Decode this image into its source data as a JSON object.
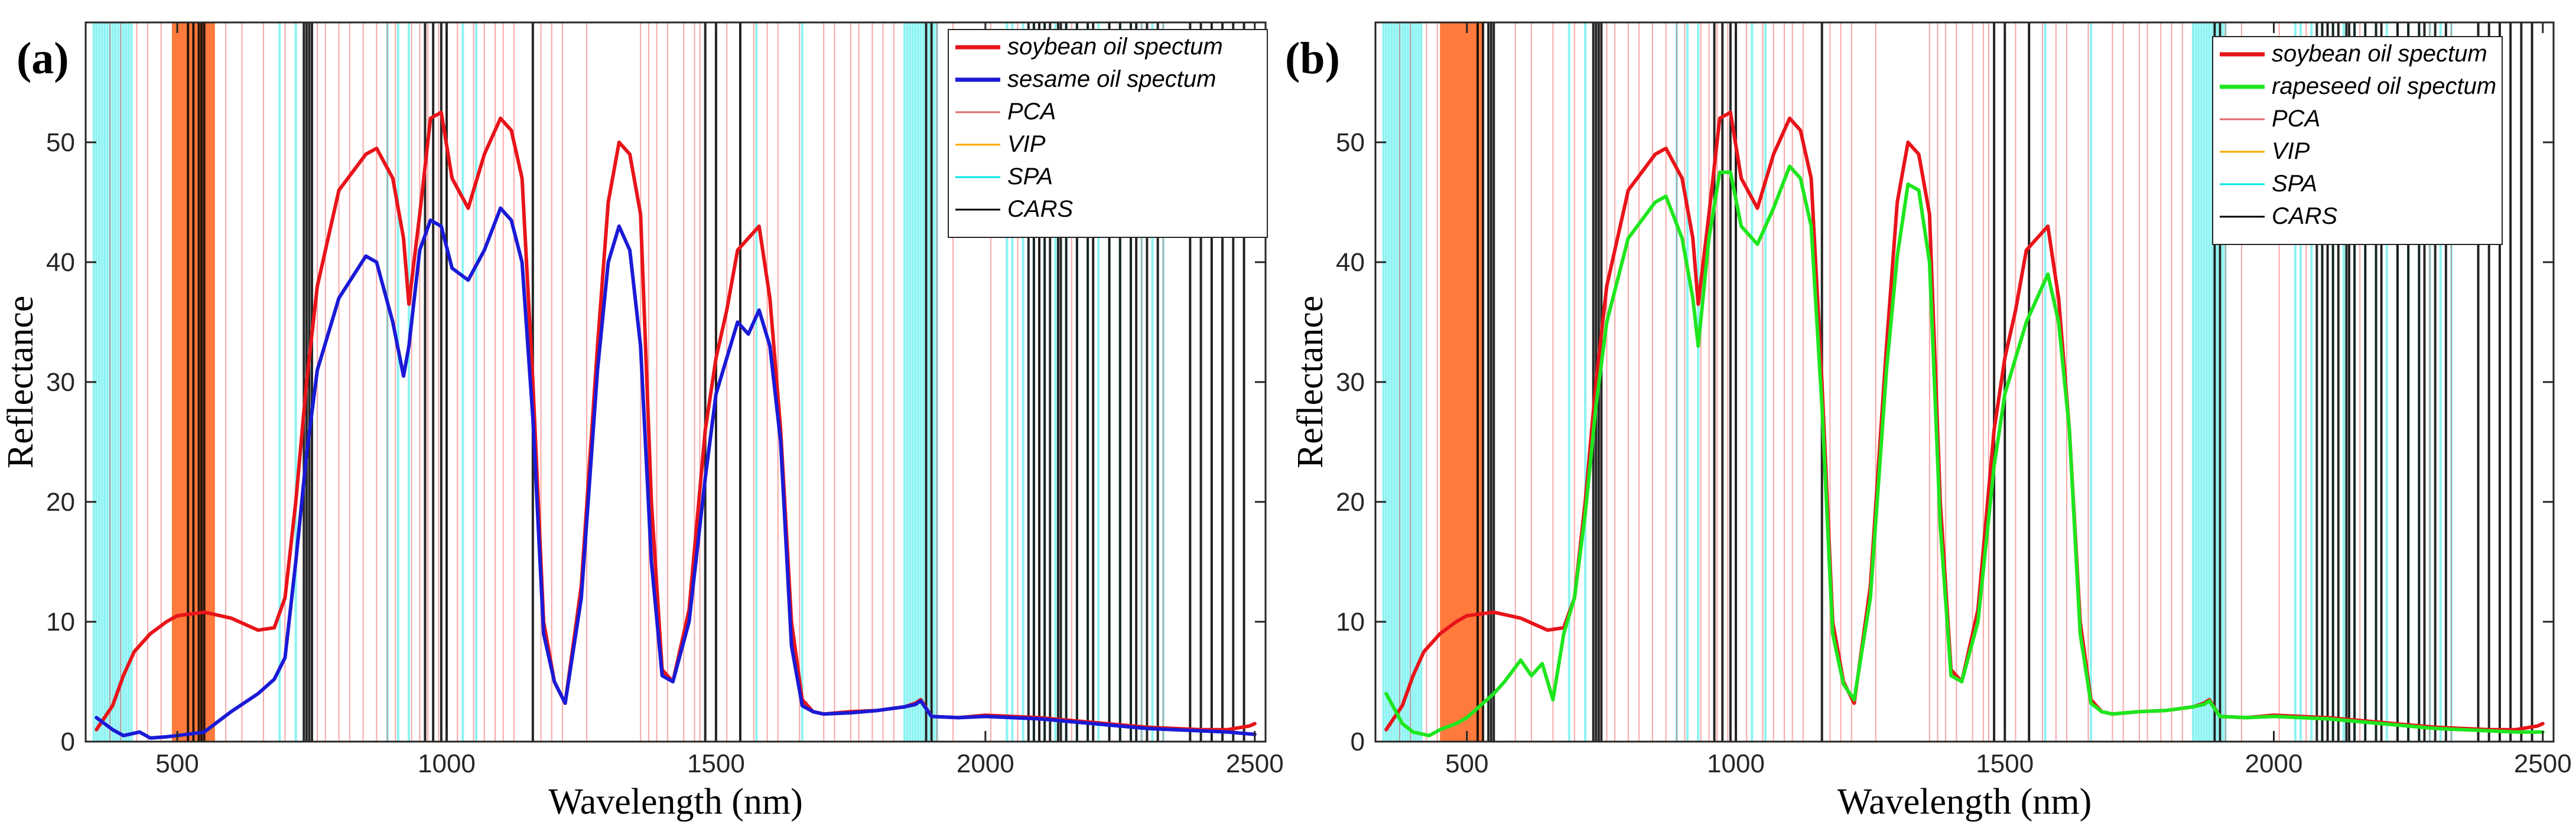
{
  "chart_data": [
    {
      "type": "line",
      "panel_label": "(a)",
      "xlabel": "Wavelength (nm)",
      "ylabel": "Reflectance",
      "xlim": [
        330,
        2520
      ],
      "ylim": [
        0,
        60
      ],
      "xticks": [
        500,
        1000,
        1500,
        2000,
        2500
      ],
      "yticks": [
        0,
        10,
        20,
        30,
        40,
        50
      ],
      "legend_position": "top-right",
      "legend": [
        "soybean oil spectum",
        "sesame oil spectum",
        "PCA",
        "VIP",
        "SPA",
        "CARS"
      ],
      "series": [
        {
          "name": "soybean oil spectum",
          "color": "#e8141a",
          "x": [
            350,
            380,
            400,
            420,
            450,
            480,
            500,
            550,
            600,
            650,
            680,
            700,
            720,
            740,
            760,
            800,
            850,
            870,
            900,
            920,
            930,
            950,
            970,
            990,
            1010,
            1040,
            1070,
            1100,
            1120,
            1140,
            1160,
            1180,
            1200,
            1220,
            1250,
            1280,
            1300,
            1320,
            1340,
            1360,
            1380,
            1400,
            1420,
            1450,
            1480,
            1500,
            1520,
            1540,
            1560,
            1580,
            1600,
            1620,
            1640,
            1660,
            1680,
            1700,
            1750,
            1800,
            1850,
            1870,
            1880,
            1900,
            1950,
            2000,
            2050,
            2100,
            2150,
            2200,
            2250,
            2300,
            2350,
            2400,
            2450,
            2490,
            2500
          ],
          "y": [
            1,
            3,
            5.5,
            7.5,
            9,
            10,
            10.5,
            10.8,
            10.3,
            9.3,
            9.5,
            12,
            20,
            30,
            38,
            46,
            49,
            49.5,
            47,
            42,
            36.5,
            44,
            52,
            52.5,
            47,
            44.5,
            49,
            52,
            51,
            47,
            30,
            10,
            5,
            3.2,
            13,
            33,
            45,
            50,
            49,
            44,
            20,
            6,
            5,
            11,
            26,
            32,
            36,
            41,
            42,
            43,
            37,
            26,
            10,
            3.5,
            2.5,
            2.3,
            2.5,
            2.6,
            2.9,
            3.2,
            3.5,
            2.1,
            2,
            2.2,
            2.1,
            2,
            1.8,
            1.6,
            1.4,
            1.2,
            1.1,
            1,
            1,
            1.3,
            1.5
          ]
        },
        {
          "name": "sesame oil spectum",
          "color": "#1a1ad6",
          "x": [
            350,
            380,
            400,
            430,
            450,
            480,
            500,
            550,
            600,
            650,
            680,
            700,
            720,
            740,
            760,
            800,
            850,
            870,
            900,
            920,
            930,
            950,
            970,
            990,
            1010,
            1040,
            1070,
            1100,
            1120,
            1140,
            1160,
            1180,
            1200,
            1220,
            1250,
            1280,
            1300,
            1320,
            1340,
            1360,
            1380,
            1400,
            1420,
            1450,
            1480,
            1500,
            1520,
            1540,
            1560,
            1580,
            1600,
            1620,
            1640,
            1660,
            1680,
            1700,
            1750,
            1800,
            1850,
            1870,
            1880,
            1900,
            1950,
            2000,
            2050,
            2100,
            2150,
            2200,
            2250,
            2300,
            2350,
            2400,
            2450,
            2500
          ],
          "y": [
            2,
            1,
            0.5,
            0.8,
            0.3,
            0.4,
            0.5,
            0.8,
            2.5,
            4,
            5.2,
            7,
            15,
            24,
            31,
            37,
            40.5,
            40,
            35,
            30.5,
            33,
            41,
            43.5,
            43,
            39.5,
            38.5,
            41,
            44.5,
            43.5,
            40,
            27,
            9,
            5,
            3.2,
            12,
            31,
            40,
            43,
            41,
            33,
            15,
            5.5,
            5,
            10,
            22,
            29,
            32,
            35,
            34,
            36,
            33,
            25,
            8,
            3,
            2.5,
            2.3,
            2.4,
            2.6,
            2.9,
            3.1,
            3.4,
            2.1,
            2,
            2.1,
            2,
            1.9,
            1.7,
            1.5,
            1.3,
            1.1,
            1,
            0.9,
            0.8,
            0.6
          ]
        }
      ]
    },
    {
      "type": "line",
      "panel_label": "(b)",
      "xlabel": "Wavelength (nm)",
      "ylabel": "Reflectance",
      "xlim": [
        330,
        2520
      ],
      "ylim": [
        0,
        60
      ],
      "xticks": [
        500,
        1000,
        1500,
        2000,
        2500
      ],
      "yticks": [
        0,
        10,
        20,
        30,
        40,
        50
      ],
      "legend_position": "top-right",
      "legend": [
        "soybean oil spectum",
        "rapeseed oil spectum",
        "PCA",
        "VIP",
        "SPA",
        "CARS"
      ],
      "series": [
        {
          "name": "soybean oil spectum",
          "color": "#e8141a",
          "x": [
            350,
            380,
            400,
            420,
            450,
            480,
            500,
            550,
            600,
            650,
            680,
            700,
            720,
            740,
            760,
            800,
            850,
            870,
            900,
            920,
            930,
            950,
            970,
            990,
            1010,
            1040,
            1070,
            1100,
            1120,
            1140,
            1160,
            1180,
            1200,
            1220,
            1250,
            1280,
            1300,
            1320,
            1340,
            1360,
            1380,
            1400,
            1420,
            1450,
            1480,
            1500,
            1520,
            1540,
            1560,
            1580,
            1600,
            1620,
            1640,
            1660,
            1680,
            1700,
            1750,
            1800,
            1850,
            1870,
            1880,
            1900,
            1950,
            2000,
            2050,
            2100,
            2150,
            2200,
            2250,
            2300,
            2350,
            2400,
            2450,
            2490,
            2500
          ],
          "y": [
            1,
            3,
            5.5,
            7.5,
            9,
            10,
            10.5,
            10.8,
            10.3,
            9.3,
            9.5,
            12,
            20,
            30,
            38,
            46,
            49,
            49.5,
            47,
            42,
            36.5,
            44,
            52,
            52.5,
            47,
            44.5,
            49,
            52,
            51,
            47,
            30,
            10,
            5,
            3.2,
            13,
            33,
            45,
            50,
            49,
            44,
            20,
            6,
            5,
            11,
            26,
            32,
            36,
            41,
            42,
            43,
            37,
            26,
            10,
            3.5,
            2.5,
            2.3,
            2.5,
            2.6,
            2.9,
            3.2,
            3.5,
            2.1,
            2,
            2.2,
            2.1,
            2,
            1.8,
            1.6,
            1.4,
            1.2,
            1.1,
            1,
            1,
            1.3,
            1.5
          ]
        },
        {
          "name": "rapeseed oil spectum",
          "color": "#1ee61e",
          "x": [
            350,
            380,
            400,
            430,
            450,
            480,
            500,
            550,
            570,
            600,
            620,
            640,
            660,
            680,
            700,
            720,
            740,
            760,
            800,
            850,
            870,
            900,
            920,
            930,
            950,
            970,
            990,
            1010,
            1040,
            1070,
            1100,
            1120,
            1140,
            1160,
            1180,
            1200,
            1220,
            1250,
            1280,
            1300,
            1320,
            1340,
            1360,
            1380,
            1400,
            1420,
            1450,
            1480,
            1500,
            1520,
            1540,
            1560,
            1580,
            1600,
            1620,
            1640,
            1660,
            1680,
            1700,
            1750,
            1800,
            1850,
            1870,
            1880,
            1900,
            1950,
            2000,
            2050,
            2100,
            2150,
            2200,
            2250,
            2300,
            2350,
            2400,
            2450,
            2500
          ],
          "y": [
            4,
            1.5,
            0.8,
            0.5,
            1,
            1.5,
            2,
            4,
            5,
            6.8,
            5.5,
            6.5,
            3.5,
            9,
            12,
            19,
            28,
            35,
            42,
            45,
            45.5,
            42,
            37,
            33,
            42,
            47.5,
            47.5,
            43,
            41.5,
            44.5,
            48,
            47,
            43,
            28,
            9,
            4.8,
            3.5,
            12,
            31,
            40.5,
            46.5,
            46,
            40,
            18,
            5.5,
            5,
            10,
            23,
            29,
            32,
            35,
            37,
            39,
            35,
            26,
            9,
            3.2,
            2.5,
            2.3,
            2.5,
            2.6,
            2.9,
            3.1,
            3.4,
            2.1,
            2,
            2.1,
            2,
            1.9,
            1.7,
            1.5,
            1.3,
            1.1,
            1,
            0.9,
            0.8,
            0.8
          ]
        }
      ]
    }
  ],
  "selection_bands": [
    {
      "name": "PCA",
      "color": "#e8141a",
      "panels": [
        "a",
        "b"
      ],
      "wavelengths": [
        375,
        395,
        425,
        445,
        470,
        590,
        620,
        660,
        700,
        760,
        775,
        800,
        820,
        845,
        870,
        890,
        905,
        935,
        950,
        965,
        985,
        1000,
        1020,
        1050,
        1070,
        1090,
        1105,
        1125,
        1175,
        1195,
        1215,
        1260,
        1360,
        1375,
        1390,
        1410,
        1440,
        1460,
        1470,
        1500,
        1520,
        1545,
        1570,
        1595,
        1615,
        1655,
        1700,
        1720,
        1750,
        1765,
        1790,
        1810,
        1830,
        1910,
        1940,
        2010,
        2060,
        2100,
        2160,
        2200,
        2230,
        2290,
        2330,
        2380,
        2420,
        2480
      ]
    },
    {
      "name": "VIP",
      "color": "#ffa500",
      "panels": [
        "a",
        "b"
      ],
      "range_a": [
        490,
        570
      ],
      "range_b": [
        450,
        530
      ]
    },
    {
      "name": "SPA",
      "color": "#00e5e5",
      "panels": [
        "a",
        "b"
      ],
      "wavelengths": [
        345,
        350,
        355,
        360,
        365,
        370,
        375,
        380,
        385,
        390,
        395,
        400,
        405,
        410,
        415,
        690,
        720,
        890,
        910,
        930,
        1030,
        1055,
        1575,
        1660,
        1850,
        1855,
        1860,
        1865,
        1870,
        1875,
        1880,
        1885,
        1890,
        1895,
        1900,
        1905,
        1910,
        2040,
        2050,
        2070,
        2090,
        2110,
        2130,
        2150,
        2170,
        2190,
        2210,
        2230,
        2250,
        2270,
        2290,
        2310,
        2330
      ]
    },
    {
      "name": "CARS",
      "color": "#000000",
      "panels": [
        "a",
        "b"
      ],
      "wavelengths": [
        520,
        530,
        540,
        545,
        550,
        735,
        740,
        745,
        750,
        960,
        975,
        990,
        1000,
        1160,
        1480,
        1500,
        1545,
        1890,
        1900,
        2080,
        2090,
        2100,
        2110,
        2120,
        2135,
        2140,
        2150,
        2170,
        2190,
        2200,
        2230,
        2250,
        2270,
        2280,
        2300,
        2320,
        2380,
        2400,
        2420,
        2440,
        2460,
        2480
      ]
    }
  ]
}
